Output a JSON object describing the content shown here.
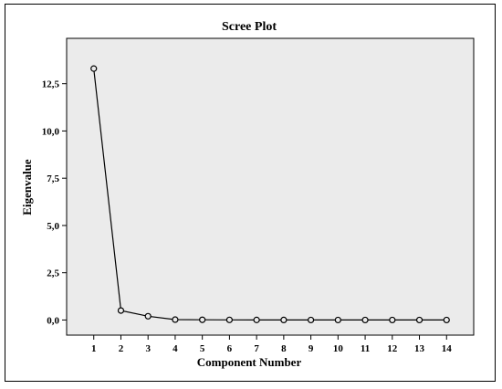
{
  "chart_data": {
    "type": "line",
    "title": "Scree Plot",
    "xlabel": "Component Number",
    "ylabel": "Eigenvalue",
    "x": [
      1,
      2,
      3,
      4,
      5,
      6,
      7,
      8,
      9,
      10,
      11,
      12,
      13,
      14
    ],
    "values": [
      13.3,
      0.5,
      0.2,
      0.02,
      0.01,
      0.005,
      0.003,
      0.002,
      0.001,
      0.001,
      0.0005,
      0.0003,
      0.0002,
      0.0001
    ],
    "x_ticks": [
      "1",
      "2",
      "3",
      "4",
      "5",
      "6",
      "7",
      "8",
      "9",
      "10",
      "11",
      "12",
      "13",
      "14"
    ],
    "y_ticks": [
      {
        "value": 0,
        "label": "0,0"
      },
      {
        "value": 2.5,
        "label": "2,5"
      },
      {
        "value": 5,
        "label": "5,0"
      },
      {
        "value": 7.5,
        "label": "7,5"
      },
      {
        "value": 10,
        "label": "10,0"
      },
      {
        "value": 12.5,
        "label": "12,5"
      }
    ],
    "xlim": [
      0,
      15
    ],
    "ylim": [
      -0.8,
      14.9
    ],
    "grid": false,
    "colors": {
      "plot_background": "#ebebeb",
      "line": "#000000",
      "marker_fill": "#ebebeb"
    }
  }
}
